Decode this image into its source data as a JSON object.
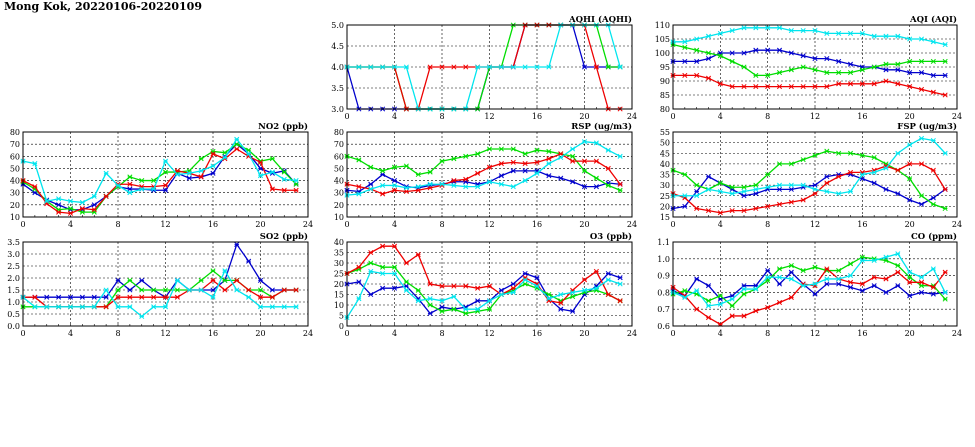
{
  "title": "Mong Kok, 20220106-20220109",
  "colors": [
    "#0000cc",
    "#00dd00",
    "#ee0000",
    "#00e5ee"
  ],
  "chart_data": [
    {
      "id": "aqhi",
      "type": "line",
      "title": "AQHI (AQHI)",
      "xlim": [
        0,
        24
      ],
      "xticks": [
        0,
        4,
        8,
        12,
        16,
        20,
        24
      ],
      "ylim": [
        3.0,
        5.0
      ],
      "yticks": [
        "3.0",
        "3.5",
        "4.0",
        "4.5",
        "5.0"
      ],
      "series": [
        {
          "values": [
            4,
            3,
            3,
            3,
            3,
            3,
            3,
            3,
            3,
            3,
            3,
            3,
            4,
            4,
            4,
            5,
            5,
            5,
            5,
            5,
            4,
            4,
            4,
            4
          ]
        },
        {
          "values": [
            4,
            4,
            4,
            4,
            4,
            3,
            3,
            3,
            3,
            3,
            3,
            3,
            4,
            4,
            5,
            5,
            5,
            5,
            5,
            5,
            5,
            5,
            4,
            4
          ]
        },
        {
          "values": [
            4,
            4,
            4,
            4,
            4,
            3,
            3,
            4,
            4,
            4,
            4,
            4,
            4,
            4,
            4,
            5,
            5,
            5,
            5,
            5,
            5,
            4,
            3,
            3
          ]
        },
        {
          "values": [
            4,
            4,
            4,
            4,
            4,
            4,
            3,
            3,
            3,
            3,
            3,
            4,
            4,
            4,
            4,
            4,
            4,
            4,
            5,
            5,
            5,
            5,
            5,
            4
          ]
        }
      ]
    },
    {
      "id": "aqi",
      "type": "line",
      "title": "AQI (AQI)",
      "xlim": [
        0,
        24
      ],
      "xticks": [
        0,
        4,
        8,
        12,
        16,
        20,
        24
      ],
      "ylim": [
        80,
        110
      ],
      "yticks": [
        "80",
        "85",
        "90",
        "95",
        "100",
        "105",
        "110"
      ],
      "series": [
        {
          "values": [
            97,
            97,
            97,
            98,
            100,
            100,
            100,
            101,
            101,
            101,
            100,
            99,
            98,
            98,
            97,
            96,
            95,
            95,
            94,
            94,
            93,
            93,
            92,
            92
          ]
        },
        {
          "values": [
            103,
            102,
            101,
            100,
            99,
            97,
            95,
            92,
            92,
            93,
            94,
            95,
            94,
            93,
            93,
            93,
            94,
            95,
            96,
            96,
            97,
            97,
            97,
            97
          ]
        },
        {
          "values": [
            92,
            92,
            92,
            91,
            89,
            88,
            88,
            88,
            88,
            88,
            88,
            88,
            88,
            88,
            89,
            89,
            89,
            89,
            90,
            89,
            88,
            87,
            86,
            85
          ]
        },
        {
          "values": [
            104,
            104,
            105,
            106,
            107,
            108,
            109,
            109,
            109,
            109,
            108,
            108,
            108,
            107,
            107,
            107,
            107,
            106,
            106,
            106,
            105,
            105,
            104,
            103
          ]
        }
      ]
    },
    {
      "id": "no2",
      "type": "line",
      "title": "NO2 (ppb)",
      "xlim": [
        0,
        24
      ],
      "xticks": [
        0,
        4,
        8,
        12,
        16,
        20,
        24
      ],
      "ylim": [
        10,
        80
      ],
      "yticks": [
        "10",
        "20",
        "30",
        "40",
        "50",
        "60",
        "70",
        "80"
      ],
      "series": [
        {
          "values": [
            37,
            30,
            24,
            20,
            16,
            16,
            20,
            27,
            35,
            33,
            33,
            32,
            32,
            46,
            42,
            43,
            46,
            60,
            70,
            62,
            50,
            46,
            48,
            37
          ]
        },
        {
          "values": [
            39,
            33,
            23,
            16,
            17,
            14,
            14,
            27,
            35,
            43,
            40,
            40,
            47,
            47,
            48,
            58,
            64,
            63,
            70,
            65,
            56,
            58,
            47,
            37
          ]
        },
        {
          "values": [
            40,
            35,
            21,
            14,
            13,
            17,
            16,
            27,
            37,
            37,
            35,
            35,
            36,
            48,
            46,
            43,
            62,
            58,
            66,
            60,
            55,
            33,
            32,
            32
          ]
        },
        {
          "values": [
            56,
            54,
            23,
            25,
            23,
            22,
            27,
            46,
            36,
            30,
            33,
            33,
            56,
            45,
            46,
            48,
            52,
            59,
            74,
            62,
            44,
            47,
            41,
            40
          ]
        }
      ]
    },
    {
      "id": "rsp",
      "type": "line",
      "title": "RSP (ug/m3)",
      "xlim": [
        0,
        24
      ],
      "xticks": [
        0,
        4,
        8,
        12,
        16,
        20,
        24
      ],
      "ylim": [
        10,
        80
      ],
      "yticks": [
        "10",
        "20",
        "30",
        "40",
        "50",
        "60",
        "70",
        "80"
      ],
      "series": [
        {
          "values": [
            32,
            31,
            37,
            45,
            40,
            35,
            34,
            36,
            37,
            39,
            39,
            37,
            39,
            44,
            48,
            48,
            48,
            44,
            42,
            39,
            35,
            35,
            38,
            37
          ]
        },
        {
          "values": [
            60,
            57,
            51,
            48,
            51,
            52,
            45,
            47,
            56,
            58,
            60,
            62,
            66,
            66,
            66,
            62,
            65,
            64,
            62,
            60,
            48,
            42,
            36,
            32
          ]
        },
        {
          "values": [
            37,
            35,
            33,
            29,
            32,
            31,
            32,
            34,
            36,
            40,
            41,
            46,
            51,
            54,
            55,
            54,
            55,
            58,
            62,
            56,
            56,
            56,
            50,
            37
          ]
        },
        {
          "values": [
            28,
            29,
            33,
            36,
            36,
            34,
            35,
            37,
            37,
            36,
            35,
            35,
            39,
            37,
            35,
            40,
            46,
            54,
            59,
            66,
            72,
            71,
            65,
            60
          ]
        }
      ]
    },
    {
      "id": "fsp",
      "type": "line",
      "title": "FSP (ug/m3)",
      "xlim": [
        0,
        24
      ],
      "xticks": [
        0,
        4,
        8,
        12,
        16,
        20,
        24
      ],
      "ylim": [
        15,
        55
      ],
      "yticks": [
        "15",
        "20",
        "25",
        "30",
        "35",
        "40",
        "45",
        "50",
        "55"
      ],
      "series": [
        {
          "values": [
            19,
            20,
            27,
            34,
            31,
            28,
            25,
            26,
            28,
            28,
            28,
            29,
            30,
            34,
            35,
            35,
            33,
            31,
            28,
            26,
            23,
            21,
            24,
            28
          ]
        },
        {
          "values": [
            37,
            35,
            30,
            28,
            31,
            29,
            29,
            30,
            35,
            40,
            40,
            42,
            44,
            46,
            45,
            45,
            44,
            43,
            40,
            37,
            33,
            25,
            21,
            19
          ]
        },
        {
          "values": [
            26,
            24,
            19,
            18,
            17,
            18,
            18,
            19,
            20,
            21,
            22,
            23,
            26,
            31,
            34,
            36,
            36,
            37,
            39,
            37,
            40,
            40,
            37,
            28
          ]
        },
        {
          "values": [
            25,
            25,
            25,
            28,
            27,
            26,
            27,
            28,
            29,
            30,
            30,
            30,
            28,
            27,
            26,
            27,
            35,
            36,
            38,
            45,
            49,
            52,
            51,
            45
          ]
        }
      ]
    },
    {
      "id": "so2",
      "type": "line",
      "title": "SO2 (ppb)",
      "xlim": [
        0,
        24
      ],
      "xticks": [
        0,
        4,
        8,
        12,
        16,
        20,
        24
      ],
      "ylim": [
        0.0,
        3.5
      ],
      "yticks": [
        "0.0",
        "0.5",
        "1.0",
        "1.5",
        "2.0",
        "2.5",
        "3.0",
        "3.5"
      ],
      "series": [
        {
          "values": [
            1.2,
            1.2,
            1.2,
            1.2,
            1.2,
            1.2,
            1.2,
            1.2,
            1.9,
            1.5,
            1.9,
            1.5,
            1.2,
            1.9,
            1.5,
            1.5,
            1.5,
            1.9,
            3.4,
            2.7,
            1.9,
            1.5,
            1.5,
            1.5
          ]
        },
        {
          "values": [
            0.8,
            0.8,
            0.8,
            0.8,
            0.8,
            0.8,
            0.8,
            0.8,
            1.5,
            1.9,
            1.5,
            1.5,
            1.5,
            1.5,
            1.5,
            1.9,
            2.3,
            1.9,
            1.9,
            1.5,
            1.5,
            1.2,
            1.5,
            1.5
          ]
        },
        {
          "values": [
            1.2,
            1.2,
            0.8,
            0.8,
            0.8,
            0.8,
            0.8,
            0.8,
            1.2,
            1.2,
            1.2,
            1.2,
            1.2,
            1.2,
            1.5,
            1.5,
            1.9,
            1.5,
            1.9,
            1.5,
            1.2,
            1.2,
            1.5,
            1.5
          ]
        },
        {
          "values": [
            1.2,
            0.8,
            0.8,
            0.8,
            0.8,
            0.8,
            0.8,
            1.5,
            0.8,
            0.8,
            0.4,
            0.8,
            0.8,
            1.9,
            1.5,
            1.5,
            1.2,
            2.3,
            1.5,
            1.2,
            0.8,
            0.8,
            0.8,
            0.8
          ]
        }
      ]
    },
    {
      "id": "o3",
      "type": "line",
      "title": "O3 (ppb)",
      "xlim": [
        0,
        24
      ],
      "xticks": [
        0,
        4,
        8,
        12,
        16,
        20,
        24
      ],
      "ylim": [
        0,
        40
      ],
      "yticks": [
        "0",
        "5",
        "10",
        "15",
        "20",
        "25",
        "30",
        "35",
        "40"
      ],
      "series": [
        {
          "values": [
            20,
            21,
            15,
            18,
            18,
            19,
            13,
            6,
            9,
            8,
            9,
            12,
            12,
            17,
            20,
            25,
            23,
            13,
            8,
            7,
            15,
            19,
            25,
            23
          ]
        },
        {
          "values": [
            25,
            27,
            30,
            28,
            28,
            21,
            17,
            10,
            7,
            8,
            6,
            7,
            8,
            15,
            17,
            20,
            18,
            15,
            12,
            14,
            16,
            17,
            15,
            12
          ]
        },
        {
          "values": [
            25,
            28,
            35,
            38,
            38,
            30,
            34,
            20,
            19,
            19,
            19,
            18,
            19,
            15,
            18,
            23,
            20,
            12,
            11,
            17,
            22,
            26,
            15,
            12
          ]
        },
        {
          "values": [
            4,
            13,
            26,
            25,
            25,
            17,
            12,
            13,
            12,
            14,
            8,
            8,
            12,
            15,
            16,
            22,
            19,
            13,
            15,
            16,
            17,
            18,
            22,
            20
          ]
        }
      ]
    },
    {
      "id": "co",
      "type": "line",
      "title": "CO (ppm)",
      "xlim": [
        0,
        24
      ],
      "xticks": [
        0,
        4,
        8,
        12,
        16,
        20,
        24
      ],
      "ylim": [
        0.6,
        1.1
      ],
      "yticks": [
        "0.6",
        "0.7",
        "0.8",
        "0.9",
        "1.0",
        "1.1"
      ],
      "series": [
        {
          "values": [
            0.81,
            0.78,
            0.88,
            0.84,
            0.76,
            0.78,
            0.84,
            0.84,
            0.93,
            0.85,
            0.92,
            0.85,
            0.79,
            0.85,
            0.85,
            0.83,
            0.81,
            0.84,
            0.8,
            0.84,
            0.78,
            0.8,
            0.79,
            0.8
          ]
        },
        {
          "values": [
            0.79,
            0.81,
            0.79,
            0.75,
            0.78,
            0.72,
            0.79,
            0.82,
            0.87,
            0.94,
            0.96,
            0.93,
            0.95,
            0.93,
            0.93,
            0.97,
            1.01,
            1.0,
            0.99,
            0.96,
            0.89,
            0.84,
            0.84,
            0.76
          ]
        },
        {
          "values": [
            0.83,
            0.78,
            0.7,
            0.65,
            0.61,
            0.66,
            0.66,
            0.69,
            0.71,
            0.74,
            0.77,
            0.85,
            0.84,
            0.94,
            0.88,
            0.86,
            0.85,
            0.89,
            0.88,
            0.92,
            0.86,
            0.86,
            0.83,
            0.92
          ]
        },
        {
          "values": [
            0.8,
            0.77,
            0.81,
            0.72,
            0.73,
            0.76,
            0.82,
            0.82,
            0.89,
            0.89,
            0.88,
            0.84,
            0.85,
            0.88,
            0.88,
            0.9,
            0.99,
            0.99,
            1.01,
            1.03,
            0.92,
            0.89,
            0.94,
            0.8
          ]
        }
      ]
    }
  ]
}
